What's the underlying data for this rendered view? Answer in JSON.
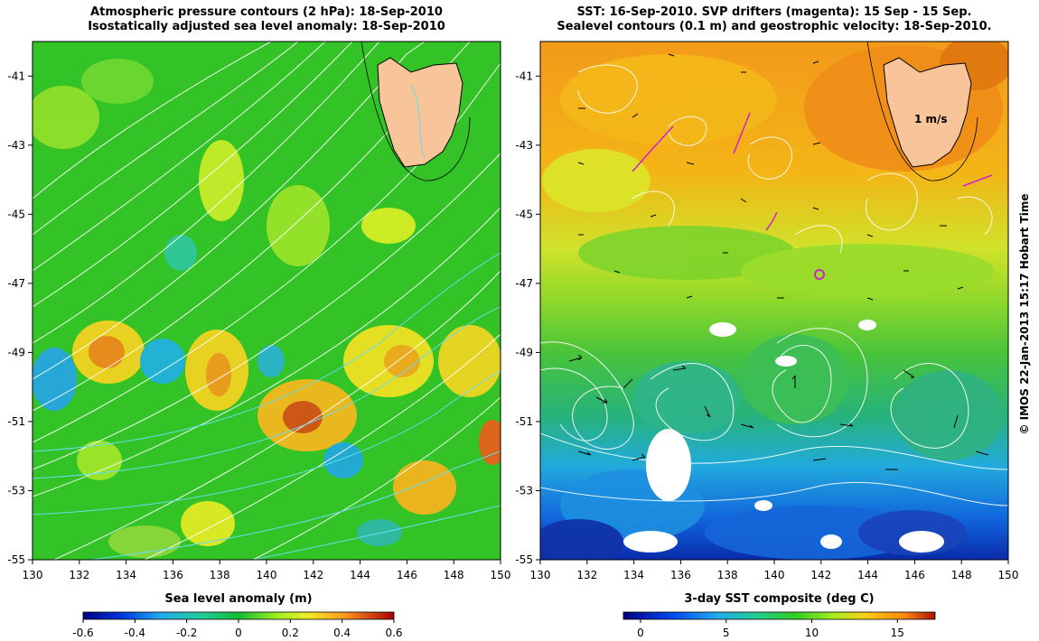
{
  "left_panel": {
    "title_line1": "Atmospheric pressure contours (2 hPa): 18-Sep-2010",
    "title_line2": "Isostatically adjusted sea level anomaly: 18-Sep-2010",
    "lat_ticks": [
      "-41",
      "-43",
      "-45",
      "-47",
      "-49",
      "-51",
      "-53",
      "-55"
    ],
    "lon_ticks": [
      "130",
      "132",
      "134",
      "136",
      "138",
      "140",
      "142",
      "144",
      "146",
      "148",
      "150"
    ],
    "colorbar": {
      "label": "Sea level anomaly (m)",
      "ticks": [
        "-0.6",
        "-0.4",
        "-0.2",
        "0",
        "0.2",
        "0.4",
        "0.6"
      ]
    }
  },
  "right_panel": {
    "title_line1": "SST: 16-Sep-2010. SVP drifters (magenta): 15 Sep - 15 Sep.",
    "title_line2": "Sealevel contours (0.1 m) and geostrophic velocity: 18-Sep-2010.",
    "lat_ticks": [
      "-41",
      "-43",
      "-45",
      "-47",
      "-49",
      "-51",
      "-53",
      "-55"
    ],
    "lon_ticks": [
      "130",
      "132",
      "134",
      "136",
      "138",
      "140",
      "142",
      "144",
      "146",
      "148",
      "150"
    ],
    "velocity_scale_label": "1 m/s",
    "colorbar": {
      "label": "3-day SST composite (deg C)",
      "ticks": [
        "0",
        "5",
        "10",
        "15"
      ]
    }
  },
  "credit": "© IMOS 22-Jan-2013 15:17 Hobart Time",
  "colors": {
    "land": "#f8c49a",
    "drifter": "#cc22cc",
    "contour_pressure": "#ffffff",
    "contour_sealevel": "#66ddee"
  }
}
